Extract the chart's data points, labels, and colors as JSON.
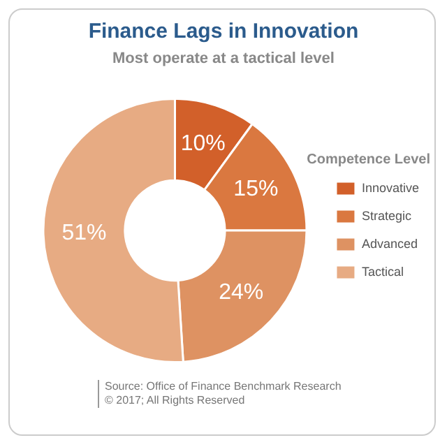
{
  "chart_data": {
    "type": "donut",
    "title": "Finance Lags in Innovation",
    "subtitle": "Most operate at a tactical level",
    "legend_title": "Competence Level",
    "legend": "right",
    "categories": [
      "Innovative",
      "Strategic",
      "Advanced",
      "Tactical"
    ],
    "values": [
      10,
      15,
      24,
      51
    ],
    "colors": [
      "#d2602a",
      "#da7840",
      "#de9262",
      "#e7ab83"
    ],
    "value_labels": [
      "10%",
      "15%",
      "24%",
      "51%"
    ],
    "annotations": [
      "Source: Office of Finance Benchmark Research",
      "© 2017; All Rights Reserved"
    ]
  }
}
